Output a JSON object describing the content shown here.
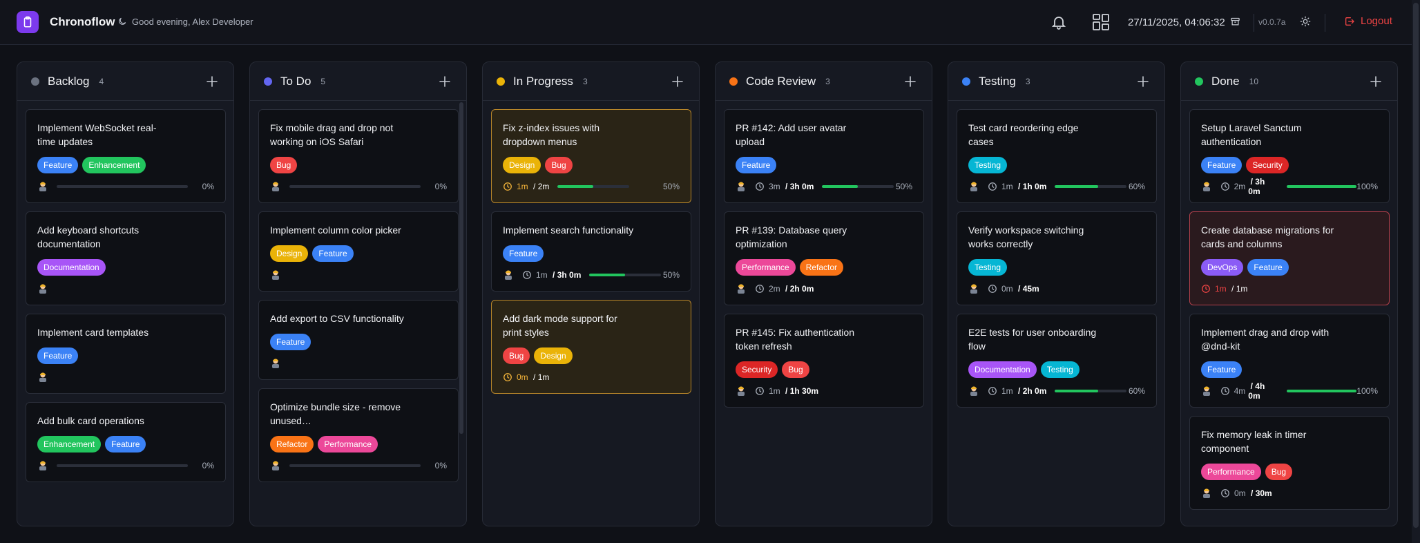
{
  "header": {
    "app_title": "Chronoflow",
    "greeting": "Good evening, Alex Developer",
    "datetime": "27/11/2025, 04:06:32",
    "version": "v0.0.7a",
    "logout_label": "Logout"
  },
  "tag_colors": {
    "Feature": "#3b82f6",
    "Enhancement": "#22c55e",
    "Documentation": "#a855f7",
    "Bug": "#ef4444",
    "Design": "#eab308",
    "Refactor": "#f97316",
    "Performance": "#ec4899",
    "Testing": "#06b6d4",
    "Security": "#dc2626",
    "DevOps": "#8b5cf6"
  },
  "columns": [
    {
      "name": "Backlog",
      "count": "4",
      "color": "#6b7280",
      "cards": [
        {
          "title": "Implement WebSocket real-time updates",
          "tags": [
            "Feature",
            "Enhancement"
          ],
          "progress": "0%"
        },
        {
          "title": "Add keyboard shortcuts documentation",
          "tags": [
            "Documentation"
          ]
        },
        {
          "title": "Implement card templates",
          "tags": [
            "Feature"
          ]
        },
        {
          "title": "Add bulk card operations",
          "tags": [
            "Enhancement",
            "Feature"
          ],
          "progress": "0%"
        }
      ]
    },
    {
      "name": "To Do",
      "count": "5",
      "color": "#6366f1",
      "cards": [
        {
          "title": "Fix mobile drag and drop not working on iOS Safari",
          "tags": [
            "Bug"
          ],
          "progress": "0%"
        },
        {
          "title": "Implement column color picker",
          "tags": [
            "Design",
            "Feature"
          ]
        },
        {
          "title": "Add export to CSV functionality",
          "tags": [
            "Feature"
          ]
        },
        {
          "title": "Optimize bundle size - remove unused…",
          "tags": [
            "Refactor",
            "Performance"
          ],
          "progress": "0%"
        }
      ]
    },
    {
      "name": "In Progress",
      "count": "3",
      "color": "#eab308",
      "cards": [
        {
          "title": "Fix z-index issues with dropdown menus",
          "tags": [
            "Design",
            "Bug"
          ],
          "status": "warn",
          "spent": "1m",
          "estimate": "2m",
          "progress": "50%"
        },
        {
          "title": "Implement search functionality",
          "tags": [
            "Feature"
          ],
          "spent": "1m",
          "estimate": "3h 0m",
          "progress": "50%",
          "avatar": true
        },
        {
          "title": "Add dark mode support for print styles",
          "tags": [
            "Bug",
            "Design"
          ],
          "status": "warn",
          "spent": "0m",
          "estimate": "1m"
        }
      ]
    },
    {
      "name": "Code Review",
      "count": "3",
      "color": "#f97316",
      "cards": [
        {
          "title": "PR #142: Add user avatar upload",
          "tags": [
            "Feature"
          ],
          "spent": "3m",
          "estimate": "3h 0m",
          "progress": "50%",
          "avatar": true
        },
        {
          "title": "PR #139: Database query optimization",
          "tags": [
            "Performance",
            "Refactor"
          ],
          "spent": "2m",
          "estimate": "2h 0m",
          "avatar": true
        },
        {
          "title": "PR #145: Fix authentication token refresh",
          "tags": [
            "Security",
            "Bug"
          ],
          "spent": "1m",
          "estimate": "1h 30m",
          "avatar": true
        }
      ]
    },
    {
      "name": "Testing",
      "count": "3",
      "color": "#3b82f6",
      "cards": [
        {
          "title": "Test card reordering edge cases",
          "tags": [
            "Testing"
          ],
          "spent": "1m",
          "estimate": "1h 0m",
          "progress": "60%",
          "avatar": true
        },
        {
          "title": "Verify workspace switching works correctly",
          "tags": [
            "Testing"
          ],
          "spent": "0m",
          "estimate": "45m",
          "avatar": true
        },
        {
          "title": "E2E tests for user onboarding flow",
          "tags": [
            "Documentation",
            "Testing"
          ],
          "spent": "1m",
          "estimate": "2h 0m",
          "progress": "60%",
          "avatar": true
        }
      ]
    },
    {
      "name": "Done",
      "count": "10",
      "color": "#22c55e",
      "cards": [
        {
          "title": "Setup Laravel Sanctum authentication",
          "tags": [
            "Feature",
            "Security"
          ],
          "spent": "2m",
          "estimate": "3h 0m",
          "progress": "100%",
          "avatar": true
        },
        {
          "title": "Create database migrations for cards and columns",
          "tags": [
            "DevOps",
            "Feature"
          ],
          "status": "overdue",
          "spent": "1m",
          "estimate": "1m"
        },
        {
          "title": "Implement drag and drop with @dnd-kit",
          "tags": [
            "Feature"
          ],
          "spent": "4m",
          "estimate": "4h 0m",
          "progress": "100%",
          "avatar": true
        },
        {
          "title": "Fix memory leak in timer component",
          "tags": [
            "Performance",
            "Bug"
          ],
          "spent": "0m",
          "estimate": "30m",
          "avatar": true
        }
      ]
    }
  ]
}
